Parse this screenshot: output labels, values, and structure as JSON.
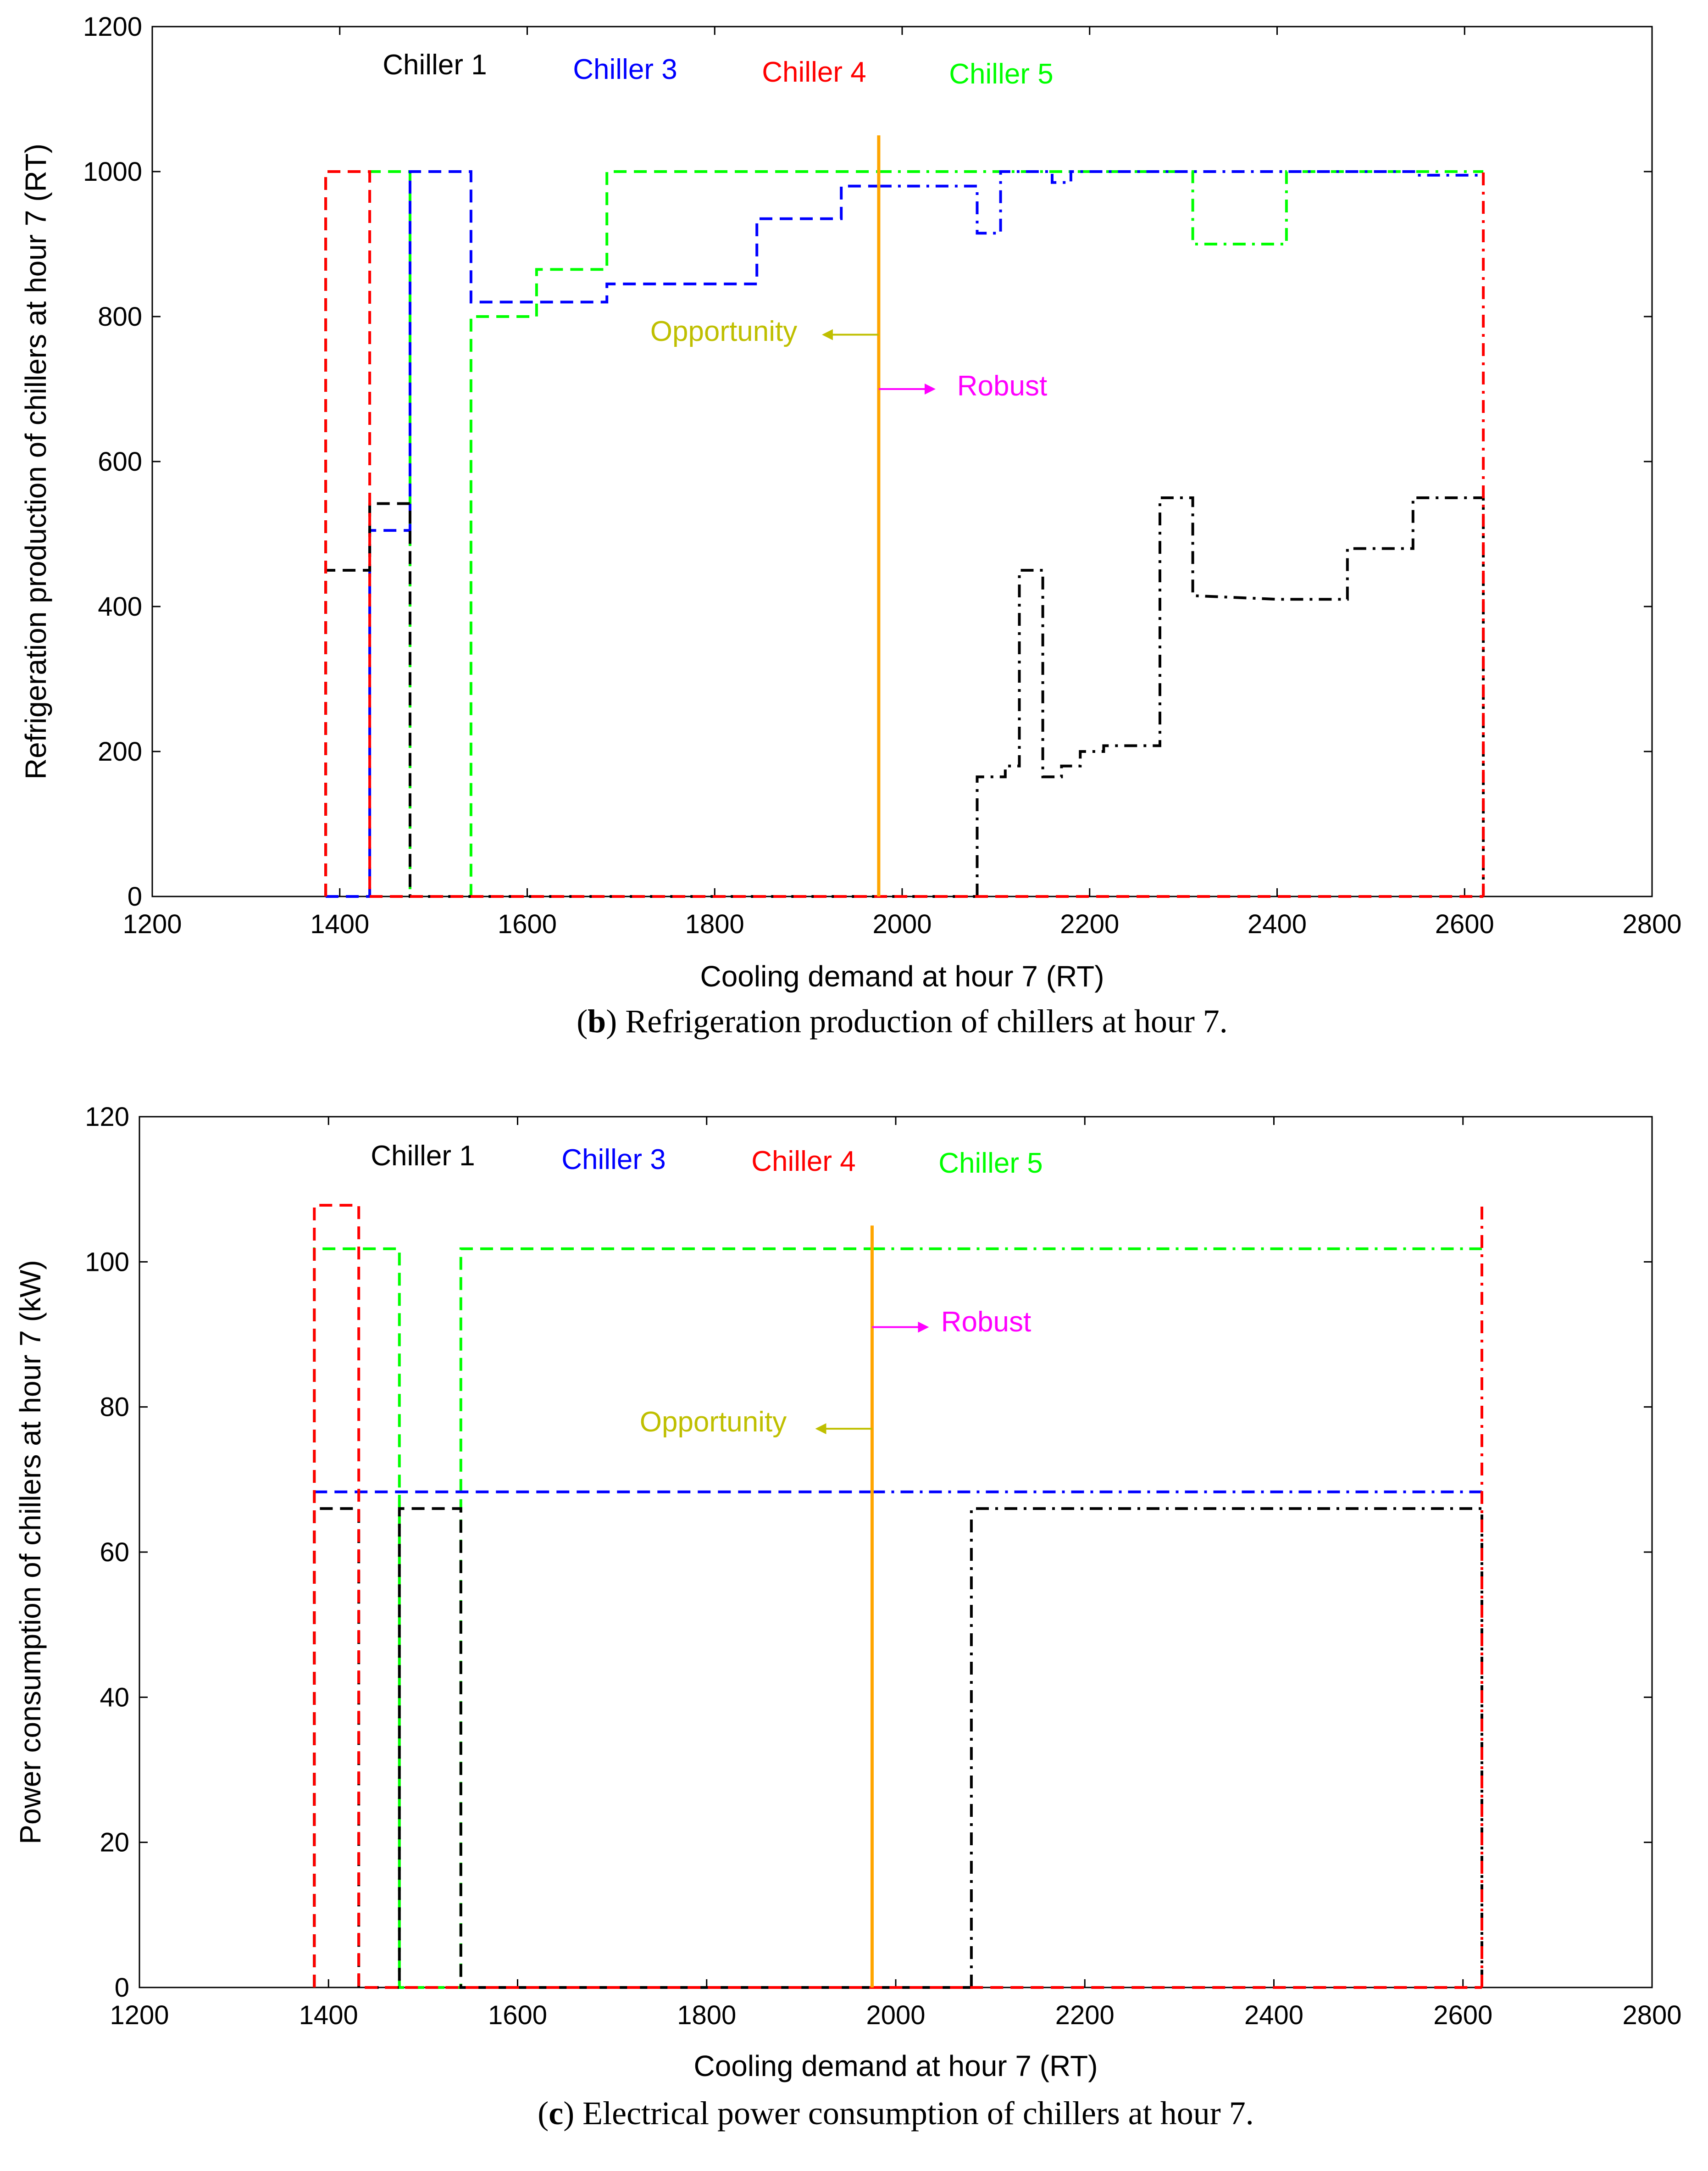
{
  "charts": [
    {
      "caption_letter": "b",
      "caption_text": ") Refrigeration production of chillers at hour 7.",
      "caption_open": "(",
      "xlabel": "Cooling demand at hour 7 (RT)",
      "ylabel": "Refrigeration production of chillers at hour 7 (RT)",
      "legend": [
        "Chiller 1",
        "Chiller 3",
        "Chiller 4",
        "Chiller 5"
      ],
      "opportunity_label": "Opportunity",
      "robust_label": "Robust"
    },
    {
      "caption_letter": "c",
      "caption_text": ") Electrical power consumption of chillers at hour 7.",
      "caption_open": "(",
      "xlabel": "Cooling demand at hour 7 (RT)",
      "ylabel": "Power consumption of chillers at hour 7 (kW)",
      "legend": [
        "Chiller 1",
        "Chiller 3",
        "Chiller 4",
        "Chiller 5"
      ],
      "opportunity_label": "Opportunity",
      "robust_label": "Robust"
    }
  ],
  "colors": {
    "chiller1": "#000000",
    "chiller3": "#0000ff",
    "chiller4": "#ff0000",
    "chiller5": "#00ff00",
    "boundary": "#ffa500",
    "opportunity": "#bfbf00",
    "robust": "#ff00ff"
  },
  "chart_data": [
    {
      "type": "line",
      "title": "(b) Refrigeration production of chillers at hour 7.",
      "xlabel": "Cooling demand at hour 7 (RT)",
      "ylabel": "Refrigeration production of chillers at hour 7 (RT)",
      "xlim": [
        1200,
        2800
      ],
      "ylim": [
        0,
        1200
      ],
      "xticks": [
        1200,
        1400,
        1600,
        1800,
        2000,
        2200,
        2400,
        2600,
        2800
      ],
      "yticks": [
        0,
        200,
        400,
        600,
        800,
        1000,
        1200
      ],
      "grid": false,
      "boundary_x": 1975,
      "boundary_y_top": 1050,
      "opportunity_y": 775,
      "robust_y": 700,
      "series": [
        {
          "name": "Chiller 1",
          "color": "#000000",
          "segments": [
            {
              "style": "dash",
              "points": [
                [
                  1385,
                  0
                ],
                [
                  1385,
                  450
                ],
                [
                  1432,
                  450
                ],
                [
                  1432,
                  542
                ],
                [
                  1475,
                  542
                ],
                [
                  1475,
                  0
                ],
                [
                  2080,
                  0
                ]
              ]
            },
            {
              "style": "dashdot",
              "points": [
                [
                  2080,
                  0
                ],
                [
                  2080,
                  165
                ],
                [
                  2110,
                  165
                ],
                [
                  2110,
                  180
                ],
                [
                  2125,
                  180
                ],
                [
                  2125,
                  450
                ],
                [
                  2150,
                  450
                ],
                [
                  2150,
                  165
                ],
                [
                  2170,
                  165
                ],
                [
                  2170,
                  180
                ],
                [
                  2190,
                  180
                ],
                [
                  2190,
                  200
                ],
                [
                  2215,
                  200
                ],
                [
                  2215,
                  208
                ],
                [
                  2275,
                  208
                ],
                [
                  2275,
                  550
                ],
                [
                  2310,
                  550
                ],
                [
                  2310,
                  415
                ],
                [
                  2400,
                  410
                ],
                [
                  2475,
                  410
                ],
                [
                  2475,
                  480
                ],
                [
                  2545,
                  480
                ],
                [
                  2545,
                  550
                ],
                [
                  2620,
                  550
                ],
                [
                  2620,
                  0
                ]
              ]
            }
          ]
        },
        {
          "name": "Chiller 3",
          "color": "#0000ff",
          "segments": [
            {
              "style": "dash",
              "points": [
                [
                  1385,
                  0
                ],
                [
                  1432,
                  0
                ],
                [
                  1432,
                  505
                ],
                [
                  1475,
                  505
                ],
                [
                  1475,
                  1000
                ],
                [
                  1540,
                  1000
                ],
                [
                  1540,
                  820
                ],
                [
                  1610,
                  820
                ],
                [
                  1610,
                  820
                ],
                [
                  1685,
                  820
                ],
                [
                  1685,
                  845
                ],
                [
                  1845,
                  845
                ],
                [
                  1845,
                  935
                ],
                [
                  1935,
                  935
                ],
                [
                  1935,
                  980
                ],
                [
                  1975,
                  980
                ]
              ]
            },
            {
              "style": "dashdot",
              "points": [
                [
                  1975,
                  980
                ],
                [
                  2080,
                  980
                ],
                [
                  2080,
                  915
                ],
                [
                  2105,
                  915
                ],
                [
                  2105,
                  1000
                ],
                [
                  2160,
                  1000
                ],
                [
                  2160,
                  985
                ],
                [
                  2180,
                  985
                ],
                [
                  2180,
                  1000
                ],
                [
                  2450,
                  1000
                ],
                [
                  2550,
                  1000
                ],
                [
                  2550,
                  995
                ],
                [
                  2620,
                  995
                ]
              ]
            }
          ]
        },
        {
          "name": "Chiller 4",
          "color": "#ff0000",
          "segments": [
            {
              "style": "dash",
              "points": [
                [
                  1385,
                  0
                ],
                [
                  1385,
                  1000
                ],
                [
                  1432,
                  1000
                ],
                [
                  1432,
                  0
                ],
                [
                  2620,
                  0
                ]
              ]
            },
            {
              "style": "dashdot",
              "points": [
                [
                  2620,
                  0
                ],
                [
                  2620,
                  1000
                ]
              ]
            }
          ]
        },
        {
          "name": "Chiller 5",
          "color": "#00ff00",
          "segments": [
            {
              "style": "dash",
              "points": [
                [
                  1385,
                  0
                ],
                [
                  1385,
                  1000
                ],
                [
                  1432,
                  1000
                ],
                [
                  1475,
                  1000
                ],
                [
                  1475,
                  0
                ],
                [
                  1540,
                  0
                ],
                [
                  1540,
                  800
                ],
                [
                  1610,
                  800
                ],
                [
                  1610,
                  865
                ],
                [
                  1685,
                  865
                ],
                [
                  1685,
                  1000
                ],
                [
                  1975,
                  1000
                ]
              ]
            },
            {
              "style": "dashdot",
              "points": [
                [
                  1975,
                  1000
                ],
                [
                  2310,
                  1000
                ],
                [
                  2310,
                  900
                ],
                [
                  2410,
                  900
                ],
                [
                  2410,
                  1000
                ],
                [
                  2620,
                  1000
                ]
              ]
            }
          ]
        }
      ]
    },
    {
      "type": "line",
      "title": "(c) Electrical power consumption of chillers at hour 7.",
      "xlabel": "Cooling demand at hour 7 (RT)",
      "ylabel": "Power consumption of chillers at hour 7 (kW)",
      "xlim": [
        1200,
        2800
      ],
      "ylim": [
        0,
        120
      ],
      "xticks": [
        1200,
        1400,
        1600,
        1800,
        2000,
        2200,
        2400,
        2600,
        2800
      ],
      "yticks": [
        0,
        20,
        40,
        60,
        80,
        100,
        120
      ],
      "grid": false,
      "boundary_x": 1975,
      "boundary_y_top": 105,
      "opportunity_y": 77,
      "robust_y": 91,
      "series": [
        {
          "name": "Chiller 1",
          "color": "#000000",
          "segments": [
            {
              "style": "dash",
              "points": [
                [
                  1385,
                  0
                ],
                [
                  1385,
                  66
                ],
                [
                  1432,
                  66
                ],
                [
                  1432,
                  0
                ],
                [
                  1475,
                  0
                ],
                [
                  1475,
                  66
                ],
                [
                  1540,
                  66
                ],
                [
                  1540,
                  0
                ],
                [
                  2080,
                  0
                ]
              ]
            },
            {
              "style": "dashdot",
              "points": [
                [
                  2080,
                  0
                ],
                [
                  2080,
                  66
                ],
                [
                  2620,
                  66
                ],
                [
                  2620,
                  0
                ]
              ]
            }
          ]
        },
        {
          "name": "Chiller 3",
          "color": "#0000ff",
          "segments": [
            {
              "style": "dash",
              "points": [
                [
                  1385,
                  68.3
                ],
                [
                  1975,
                  68.3
                ]
              ]
            },
            {
              "style": "dashdot",
              "points": [
                [
                  1975,
                  68.3
                ],
                [
                  2620,
                  68.3
                ]
              ]
            }
          ]
        },
        {
          "name": "Chiller 4",
          "color": "#ff0000",
          "segments": [
            {
              "style": "dash",
              "points": [
                [
                  1385,
                  0
                ],
                [
                  1385,
                  107.8
                ],
                [
                  1432,
                  107.8
                ],
                [
                  1432,
                  0
                ],
                [
                  2620,
                  0
                ]
              ]
            },
            {
              "style": "dashdot",
              "points": [
                [
                  2620,
                  0
                ],
                [
                  2620,
                  107.8
                ]
              ]
            }
          ]
        },
        {
          "name": "Chiller 5",
          "color": "#00ff00",
          "segments": [
            {
              "style": "dash",
              "points": [
                [
                  1385,
                  0
                ],
                [
                  1385,
                  101.8
                ],
                [
                  1432,
                  101.8
                ],
                [
                  1475,
                  101.8
                ],
                [
                  1475,
                  0
                ],
                [
                  1540,
                  0
                ],
                [
                  1540,
                  101.8
                ],
                [
                  1975,
                  101.8
                ]
              ]
            },
            {
              "style": "dashdot",
              "points": [
                [
                  1975,
                  101.8
                ],
                [
                  2620,
                  101.8
                ]
              ]
            }
          ]
        }
      ]
    }
  ]
}
